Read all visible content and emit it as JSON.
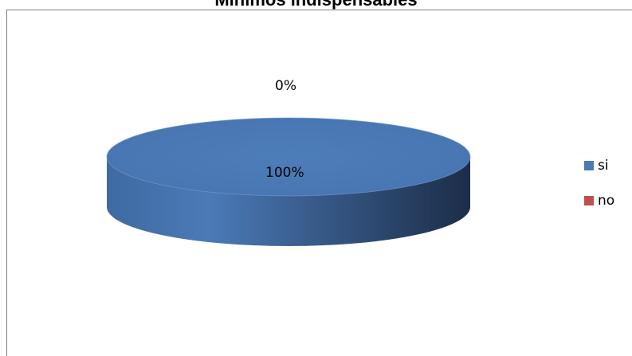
{
  "chart_data": {
    "type": "pie",
    "title": "Minimos indispensables",
    "categories": [
      "si",
      "no"
    ],
    "values": [
      100,
      0
    ],
    "data_labels": [
      "100%",
      "0%"
    ],
    "colors": [
      "#4a7ab7",
      "#c0504d"
    ],
    "legend_position": "right",
    "style": "3d"
  },
  "legend": {
    "items": [
      {
        "label": "si",
        "color": "#4a7ab7"
      },
      {
        "label": "no",
        "color": "#c0504d"
      }
    ]
  }
}
